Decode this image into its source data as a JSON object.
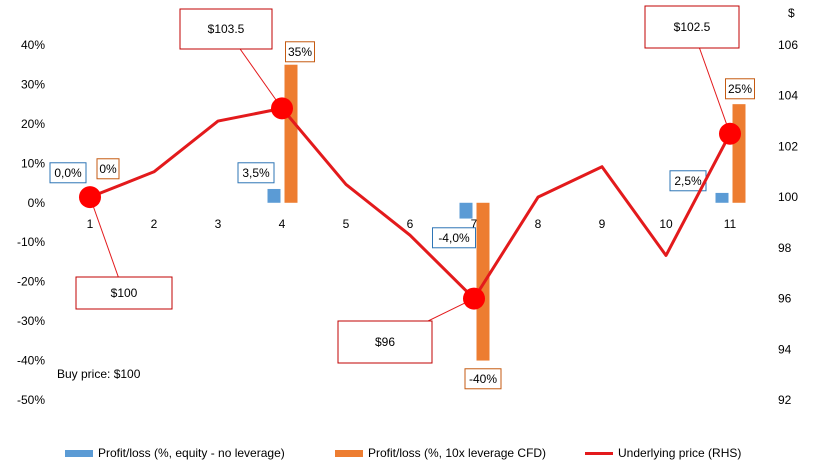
{
  "chart_data": {
    "type": "bar",
    "categories": [
      "1",
      "2",
      "3",
      "4",
      "5",
      "6",
      "7",
      "8",
      "9",
      "10",
      "11"
    ],
    "y_left": {
      "ticks": [
        "40%",
        "30%",
        "20%",
        "10%",
        "0%",
        "-10%",
        "-20%",
        "-30%",
        "-40%",
        "-50%"
      ],
      "ylim": [
        -50,
        40
      ]
    },
    "y_right": {
      "unit": "$",
      "ticks": [
        "106",
        "104",
        "102",
        "100",
        "98",
        "96",
        "94",
        "92"
      ],
      "ylim": [
        92,
        106
      ]
    },
    "series": [
      {
        "name": "Profit/loss (%, equity - no leverage)",
        "kind": "bar",
        "axis": "left",
        "color": "#5b9bd5",
        "values": [
          0,
          null,
          null,
          3.5,
          null,
          null,
          -4.0,
          null,
          null,
          null,
          2.5
        ],
        "labels": [
          "0,0%",
          null,
          null,
          "3,5%",
          null,
          null,
          "-4,0%",
          null,
          null,
          null,
          "2,5%"
        ]
      },
      {
        "name": "Profit/loss (%, 10x leverage CFD)",
        "kind": "bar",
        "axis": "left",
        "color": "#ed7d31",
        "values": [
          0,
          null,
          null,
          35,
          null,
          null,
          -40,
          null,
          null,
          null,
          25
        ],
        "labels": [
          "0%",
          null,
          null,
          "35%",
          null,
          null,
          "-40%",
          null,
          null,
          null,
          "25%"
        ]
      },
      {
        "name": "Underlying price (RHS)",
        "kind": "line",
        "axis": "right",
        "color": "#e31a1c",
        "values": [
          100,
          101,
          103,
          103.5,
          100.5,
          98.5,
          96,
          100,
          101.2,
          97.7,
          102.5
        ],
        "markers": [
          0,
          3,
          6,
          10
        ],
        "callouts": [
          "$100",
          "$103.5",
          "$96",
          "$102.5"
        ]
      }
    ],
    "annotations": [
      "Buy price: $100"
    ],
    "grid": false,
    "legend_position": "bottom"
  }
}
